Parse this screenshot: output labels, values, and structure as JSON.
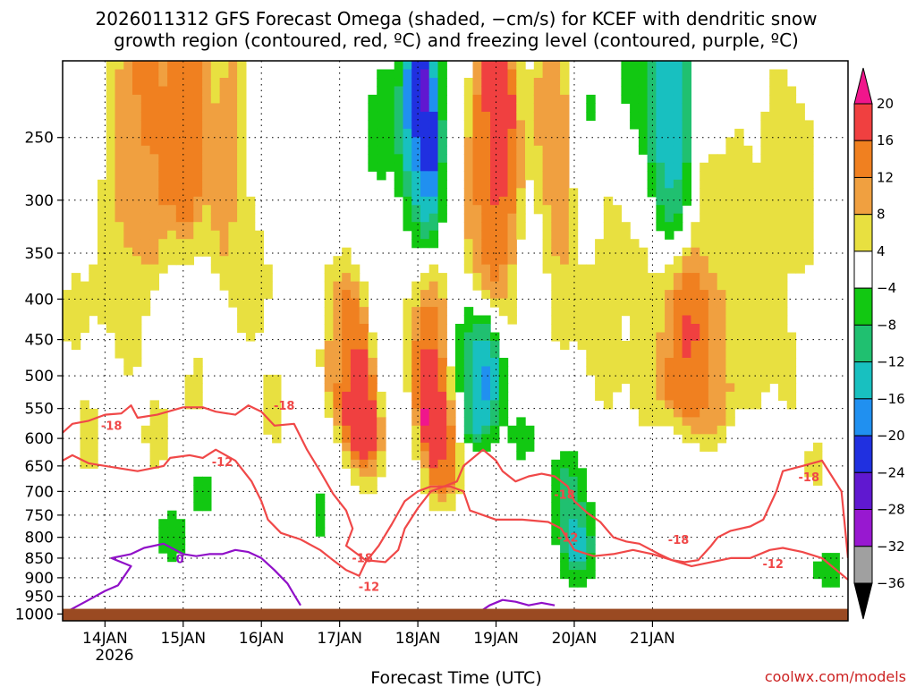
{
  "chart_data": {
    "type": "heatmap",
    "title_line1": "2026011312 GFS Forecast Omega (shaded, −cm/s) for KCEF with dendritic snow",
    "title_line2": "growth region (contoured, red, ºC) and freezing level (contoured, purple, ºC)",
    "xlabel": "Forecast Time (UTC)",
    "credit": "coolwx.com/models",
    "x_ticks": [
      "14JAN",
      "15JAN",
      "16JAN",
      "17JAN",
      "18JAN",
      "19JAN",
      "20JAN",
      "21JAN"
    ],
    "x_sublabel": "2026",
    "x_range_hours": [
      -13,
      228
    ],
    "y_ticks": [
      250,
      300,
      350,
      400,
      450,
      500,
      550,
      600,
      650,
      700,
      750,
      800,
      850,
      900,
      950,
      1000
    ],
    "y_range_hpa": [
      200,
      1020
    ],
    "colorbar": {
      "labels": [
        "20",
        "16",
        "12",
        "8",
        "4",
        "−4",
        "−8",
        "−12",
        "−16",
        "−20",
        "−24",
        "−28",
        "−32",
        "−36"
      ],
      "bins": [
        {
          "lo": 20,
          "hi": 99,
          "color": "#f0168c"
        },
        {
          "lo": 16,
          "hi": 20,
          "color": "#f04040"
        },
        {
          "lo": 12,
          "hi": 16,
          "color": "#f08020"
        },
        {
          "lo": 8,
          "hi": 12,
          "color": "#f0a040"
        },
        {
          "lo": 4,
          "hi": 8,
          "color": "#e8e040"
        },
        {
          "lo": -4,
          "hi": 4,
          "color": "#ffffff"
        },
        {
          "lo": -8,
          "hi": -4,
          "color": "#12c812"
        },
        {
          "lo": -12,
          "hi": -8,
          "color": "#20c070"
        },
        {
          "lo": -16,
          "hi": -12,
          "color": "#18c0c0"
        },
        {
          "lo": -20,
          "hi": -16,
          "color": "#2090f0"
        },
        {
          "lo": -24,
          "hi": -20,
          "color": "#2030e0"
        },
        {
          "lo": -28,
          "hi": -24,
          "color": "#6018d0"
        },
        {
          "lo": -32,
          "hi": -28,
          "color": "#9818d0"
        },
        {
          "lo": -36,
          "hi": -32,
          "color": "#a0a0a0"
        },
        {
          "lo": -99,
          "hi": -36,
          "color": "#000000"
        }
      ]
    },
    "omega_cells": [
      {
        "t": -10,
        "p": 420,
        "v": 5
      },
      {
        "t": -5,
        "p": 600,
        "v": 6
      },
      {
        "t": 0,
        "p": 380,
        "v": 5
      },
      {
        "t": 5,
        "p": 260,
        "v": 9
      },
      {
        "t": 8,
        "p": 450,
        "v": 5
      },
      {
        "t": 12,
        "p": 240,
        "v": 14
      },
      {
        "t": 14,
        "p": 300,
        "v": 10
      },
      {
        "t": 16,
        "p": 600,
        "v": 6
      },
      {
        "t": 20,
        "p": 800,
        "v": -6
      },
      {
        "t": 24,
        "p": 250,
        "v": 17
      },
      {
        "t": 26,
        "p": 220,
        "v": 12
      },
      {
        "t": 28,
        "p": 520,
        "v": 5
      },
      {
        "t": 30,
        "p": 700,
        "v": -5
      },
      {
        "t": 36,
        "p": 300,
        "v": 8
      },
      {
        "t": 40,
        "p": 250,
        "v": 10
      },
      {
        "t": 44,
        "p": 400,
        "v": 5
      },
      {
        "t": 48,
        "p": 230,
        "v": -6
      },
      {
        "t": 50,
        "p": 320,
        "v": 7
      },
      {
        "t": 52,
        "p": 550,
        "v": 6
      },
      {
        "t": 56,
        "p": 300,
        "v": -6
      },
      {
        "t": 60,
        "p": 450,
        "v": -5
      },
      {
        "t": 62,
        "p": 350,
        "v": 5
      },
      {
        "t": 66,
        "p": 750,
        "v": -5
      },
      {
        "t": 70,
        "p": 470,
        "v": 6
      },
      {
        "t": 74,
        "p": 450,
        "v": 14
      },
      {
        "t": 77,
        "p": 520,
        "v": 22
      },
      {
        "t": 80,
        "p": 600,
        "v": 16
      },
      {
        "t": 84,
        "p": 250,
        "v": -5
      },
      {
        "t": 88,
        "p": 450,
        "v": -6
      },
      {
        "t": 92,
        "p": 350,
        "v": 10
      },
      {
        "t": 95,
        "p": 300,
        "v": -14
      },
      {
        "t": 97,
        "p": 250,
        "v": -30
      },
      {
        "t": 98,
        "p": 430,
        "v": 12
      },
      {
        "t": 100,
        "p": 470,
        "v": 21
      },
      {
        "t": 102,
        "p": 560,
        "v": 23
      },
      {
        "t": 104,
        "p": 650,
        "v": 14
      },
      {
        "t": 108,
        "p": 450,
        "v": -5
      },
      {
        "t": 112,
        "p": 540,
        "v": -10
      },
      {
        "t": 114,
        "p": 300,
        "v": 6
      },
      {
        "t": 116,
        "p": 500,
        "v": -20
      },
      {
        "t": 118,
        "p": 320,
        "v": 18
      },
      {
        "t": 120,
        "p": 260,
        "v": 22
      },
      {
        "t": 122,
        "p": 280,
        "v": 14
      },
      {
        "t": 126,
        "p": 400,
        "v": 5
      },
      {
        "t": 128,
        "p": 600,
        "v": -5
      },
      {
        "t": 132,
        "p": 350,
        "v": -6
      },
      {
        "t": 136,
        "p": 250,
        "v": 10
      },
      {
        "t": 138,
        "p": 300,
        "v": 15
      },
      {
        "t": 140,
        "p": 400,
        "v": 6
      },
      {
        "t": 142,
        "p": 700,
        "v": -10
      },
      {
        "t": 145,
        "p": 820,
        "v": -14
      },
      {
        "t": 148,
        "p": 260,
        "v": -6
      },
      {
        "t": 150,
        "p": 400,
        "v": 6
      },
      {
        "t": 154,
        "p": 500,
        "v": 5
      },
      {
        "t": 156,
        "p": 300,
        "v": 8
      },
      {
        "t": 160,
        "p": 220,
        "v": -8
      },
      {
        "t": 164,
        "p": 350,
        "v": 5
      },
      {
        "t": 166,
        "p": 500,
        "v": 8
      },
      {
        "t": 170,
        "p": 420,
        "v": 5
      },
      {
        "t": 172,
        "p": 240,
        "v": -12
      },
      {
        "t": 174,
        "p": 250,
        "v": -16
      },
      {
        "t": 176,
        "p": 480,
        "v": 12
      },
      {
        "t": 178,
        "p": 450,
        "v": 21
      },
      {
        "t": 182,
        "p": 470,
        "v": 16
      },
      {
        "t": 184,
        "p": 300,
        "v": 5
      },
      {
        "t": 186,
        "p": 540,
        "v": 10
      },
      {
        "t": 190,
        "p": 450,
        "v": 8
      },
      {
        "t": 194,
        "p": 300,
        "v": 6
      },
      {
        "t": 198,
        "p": 500,
        "v": 5
      },
      {
        "t": 202,
        "p": 400,
        "v": 7
      },
      {
        "t": 206,
        "p": 260,
        "v": 6
      },
      {
        "t": 210,
        "p": 500,
        "v": 5
      },
      {
        "t": 214,
        "p": 300,
        "v": 7
      },
      {
        "t": 218,
        "p": 650,
        "v": 5
      },
      {
        "t": 222,
        "p": 880,
        "v": -6
      }
    ],
    "contours": [
      {
        "name": "dgz-warm-edge",
        "value": -12,
        "color": "#f04848",
        "points": [
          [
            -13,
            640
          ],
          [
            -10,
            630
          ],
          [
            -5,
            645
          ],
          [
            5,
            655
          ],
          [
            10,
            660
          ],
          [
            18,
            650
          ],
          [
            20,
            635
          ],
          [
            26,
            630
          ],
          [
            30,
            635
          ],
          [
            34,
            620
          ],
          [
            40,
            640
          ],
          [
            45,
            680
          ],
          [
            48,
            720
          ],
          [
            50,
            760
          ],
          [
            54,
            790
          ],
          [
            60,
            805
          ],
          [
            66,
            830
          ],
          [
            70,
            855
          ],
          [
            74,
            880
          ],
          [
            78,
            895
          ],
          [
            80,
            860
          ],
          [
            84,
            820
          ],
          [
            88,
            770
          ],
          [
            92,
            720
          ],
          [
            96,
            700
          ],
          [
            100,
            690
          ],
          [
            106,
            690
          ],
          [
            110,
            700
          ],
          [
            112,
            740
          ],
          [
            120,
            760
          ],
          [
            128,
            760
          ],
          [
            136,
            765
          ],
          [
            140,
            780
          ],
          [
            144,
            830
          ],
          [
            150,
            845
          ],
          [
            156,
            840
          ],
          [
            162,
            830
          ],
          [
            168,
            840
          ],
          [
            174,
            855
          ],
          [
            180,
            870
          ],
          [
            186,
            860
          ],
          [
            192,
            850
          ],
          [
            198,
            850
          ],
          [
            204,
            830
          ],
          [
            208,
            825
          ],
          [
            214,
            835
          ],
          [
            220,
            850
          ],
          [
            228,
            905
          ]
        ]
      },
      {
        "name": "dgz-cold-edge",
        "value": -18,
        "color": "#f04848",
        "points": [
          [
            -13,
            590
          ],
          [
            -10,
            575
          ],
          [
            -5,
            570
          ],
          [
            0,
            560
          ],
          [
            5,
            558
          ],
          [
            8,
            545
          ],
          [
            10,
            565
          ],
          [
            16,
            560
          ],
          [
            24,
            548
          ],
          [
            30,
            548
          ],
          [
            34,
            555
          ],
          [
            40,
            560
          ],
          [
            44,
            545
          ],
          [
            48,
            555
          ],
          [
            52,
            578
          ],
          [
            58,
            575
          ],
          [
            62,
            620
          ],
          [
            66,
            660
          ],
          [
            70,
            705
          ],
          [
            74,
            740
          ],
          [
            76,
            780
          ],
          [
            74,
            820
          ],
          [
            80,
            855
          ],
          [
            86,
            860
          ],
          [
            90,
            830
          ],
          [
            92,
            780
          ],
          [
            96,
            735
          ],
          [
            100,
            700
          ],
          [
            104,
            690
          ],
          [
            108,
            680
          ],
          [
            110,
            650
          ],
          [
            116,
            620
          ],
          [
            120,
            640
          ],
          [
            122,
            660
          ],
          [
            126,
            680
          ],
          [
            130,
            670
          ],
          [
            134,
            665
          ],
          [
            138,
            670
          ],
          [
            142,
            690
          ],
          [
            144,
            720
          ],
          [
            148,
            745
          ],
          [
            152,
            765
          ],
          [
            156,
            800
          ],
          [
            160,
            810
          ],
          [
            164,
            815
          ],
          [
            170,
            840
          ],
          [
            174,
            855
          ],
          [
            178,
            860
          ],
          [
            182,
            855
          ],
          [
            186,
            820
          ],
          [
            188,
            800
          ],
          [
            192,
            785
          ],
          [
            198,
            775
          ],
          [
            202,
            760
          ],
          [
            206,
            700
          ],
          [
            208,
            660
          ],
          [
            214,
            650
          ],
          [
            220,
            640
          ],
          [
            226,
            700
          ],
          [
            228,
            850
          ]
        ]
      },
      {
        "name": "freezing-level-1",
        "value": 0,
        "color": "#9010c8",
        "points": [
          [
            -13,
            1000
          ],
          [
            -5,
            960
          ],
          [
            0,
            935
          ],
          [
            4,
            920
          ],
          [
            8,
            870
          ],
          [
            2,
            850
          ],
          [
            8,
            840
          ],
          [
            12,
            825
          ],
          [
            18,
            815
          ],
          [
            24,
            840
          ],
          [
            28,
            845
          ],
          [
            32,
            840
          ],
          [
            36,
            840
          ],
          [
            40,
            830
          ],
          [
            44,
            835
          ],
          [
            48,
            850
          ],
          [
            52,
            880
          ],
          [
            56,
            915
          ],
          [
            58,
            945
          ],
          [
            60,
            975
          ]
        ]
      },
      {
        "name": "freezing-level-2",
        "value": 0,
        "color": "#9010c8",
        "points": [
          [
            114,
            1000
          ],
          [
            118,
            975
          ],
          [
            122,
            960
          ],
          [
            126,
            965
          ],
          [
            130,
            975
          ],
          [
            134,
            968
          ],
          [
            138,
            975
          ]
        ]
      }
    ],
    "contour_labels": [
      {
        "text": "-18",
        "t": 2,
        "p": 585,
        "color": "#f04848"
      },
      {
        "text": "-18",
        "t": 55,
        "p": 552,
        "color": "#f04848"
      },
      {
        "text": "-12",
        "t": 36,
        "p": 650,
        "color": "#f04848"
      },
      {
        "text": "-18",
        "t": 79,
        "p": 860,
        "color": "#f04848"
      },
      {
        "text": "-12",
        "t": 81,
        "p": 935,
        "color": "#f04848"
      },
      {
        "text": "-18",
        "t": 141,
        "p": 715,
        "color": "#f04848"
      },
      {
        "text": "-12",
        "t": 142,
        "p": 810,
        "color": "#f04848"
      },
      {
        "text": "-18",
        "t": 176,
        "p": 815,
        "color": "#f04848"
      },
      {
        "text": "-18",
        "t": 216,
        "p": 680,
        "color": "#f04848"
      },
      {
        "text": "-12",
        "t": 205,
        "p": 875,
        "color": "#f04848"
      },
      {
        "text": "0",
        "t": 23,
        "p": 862,
        "color": "#9010c8"
      }
    ]
  }
}
